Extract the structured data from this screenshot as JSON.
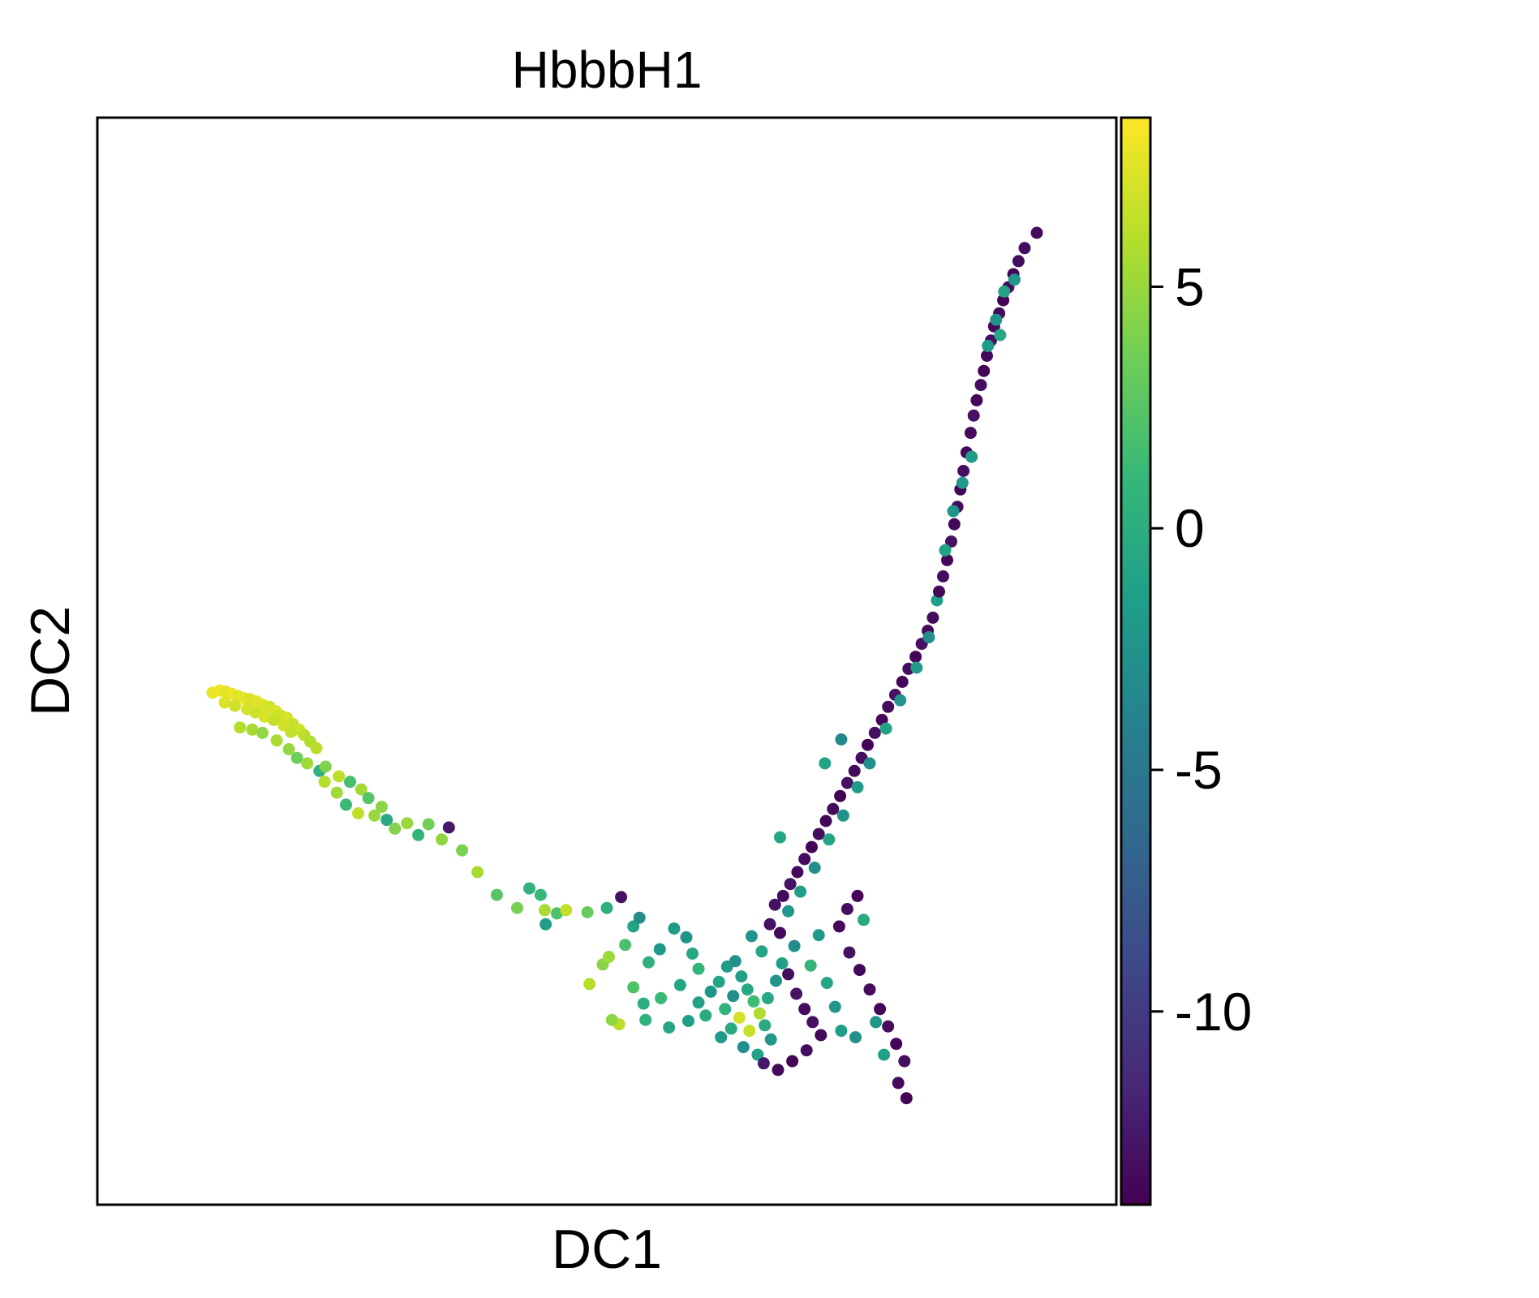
{
  "chart_data": {
    "type": "scatter",
    "title": "HbbbH1",
    "xlabel": "DC1",
    "ylabel": "DC2",
    "xticks": false,
    "yticks": false,
    "xlim": [
      0,
      100
    ],
    "ylim": [
      0,
      100
    ],
    "grid": false,
    "legend": "none",
    "colorbar": {
      "colormap": "viridis",
      "range": [
        -14,
        8.5
      ],
      "ticks": [
        5,
        0,
        -5,
        -10
      ],
      "tick_labels": [
        "5",
        "0",
        "-5",
        "-10"
      ]
    },
    "colors": {
      "viridis": [
        "#440154",
        "#482878",
        "#3e4989",
        "#31688e",
        "#26828e",
        "#1f9e89",
        "#35b779",
        "#6ece58",
        "#b5de2b",
        "#fde725"
      ]
    },
    "series": [
      {
        "note_segments": "approximate point cloud; each point [x, y, value]",
        "points": [
          [
            11.3,
            47.1,
            7.8
          ],
          [
            12.0,
            47.3,
            8.0
          ],
          [
            12.6,
            47.2,
            7.6
          ],
          [
            13.2,
            47.0,
            7.9
          ],
          [
            13.8,
            46.8,
            7.5
          ],
          [
            14.4,
            46.6,
            7.7
          ],
          [
            15.0,
            46.5,
            7.2
          ],
          [
            15.6,
            46.3,
            7.6
          ],
          [
            16.2,
            46.0,
            7.4
          ],
          [
            16.9,
            45.8,
            7.0
          ],
          [
            17.5,
            45.4,
            7.3
          ],
          [
            18.0,
            45.0,
            6.8
          ],
          [
            18.6,
            44.8,
            7.1
          ],
          [
            19.2,
            44.2,
            6.5
          ],
          [
            19.8,
            43.7,
            6.9
          ],
          [
            20.3,
            43.2,
            6.2
          ],
          [
            20.9,
            42.6,
            5.8
          ],
          [
            21.5,
            42.0,
            6.1
          ],
          [
            12.5,
            46.2,
            7.3
          ],
          [
            13.5,
            45.9,
            6.9
          ],
          [
            14.7,
            45.6,
            7.1
          ],
          [
            15.5,
            45.3,
            6.8
          ],
          [
            16.4,
            44.9,
            7.2
          ],
          [
            17.3,
            44.6,
            6.6
          ],
          [
            18.3,
            44.1,
            7.0
          ],
          [
            19.0,
            43.5,
            6.4
          ],
          [
            14.0,
            43.9,
            6.0
          ],
          [
            15.2,
            43.7,
            5.5
          ],
          [
            16.2,
            43.4,
            4.8
          ],
          [
            17.6,
            42.7,
            5.6
          ],
          [
            18.8,
            41.9,
            4.9
          ],
          [
            19.6,
            41.1,
            3.5
          ],
          [
            20.6,
            40.6,
            5.2
          ],
          [
            21.8,
            39.9,
            0.5
          ],
          [
            22.4,
            40.3,
            4.1
          ],
          [
            23.7,
            39.4,
            6.3
          ],
          [
            24.8,
            38.9,
            1.8
          ],
          [
            25.9,
            38.2,
            5.4
          ],
          [
            26.6,
            37.4,
            2.4
          ],
          [
            27.9,
            36.6,
            4.5
          ],
          [
            22.3,
            38.9,
            6.0
          ],
          [
            23.5,
            37.9,
            5.3
          ],
          [
            24.4,
            36.8,
            1.2
          ],
          [
            25.6,
            36.0,
            6.4
          ],
          [
            27.2,
            35.8,
            5.0
          ],
          [
            28.4,
            35.4,
            -0.5
          ],
          [
            29.2,
            34.6,
            4.2
          ],
          [
            30.4,
            35.1,
            5.1
          ],
          [
            31.5,
            34.0,
            0.8
          ],
          [
            32.5,
            35.0,
            3.6
          ],
          [
            33.8,
            33.6,
            4.7
          ],
          [
            35.8,
            32.6,
            3.9
          ],
          [
            34.5,
            34.7,
            -12.5
          ],
          [
            37.3,
            30.6,
            5.5
          ],
          [
            39.2,
            28.5,
            2.5
          ],
          [
            41.2,
            27.3,
            3.8
          ],
          [
            42.4,
            29.1,
            0.5
          ],
          [
            43.5,
            28.5,
            1.1
          ],
          [
            43.9,
            27.1,
            5.6
          ],
          [
            44.0,
            25.8,
            -1.5
          ],
          [
            45.1,
            26.8,
            2.0
          ],
          [
            46.0,
            27.1,
            6.5
          ],
          [
            48.1,
            26.9,
            3.2
          ],
          [
            50.0,
            27.3,
            0.2
          ],
          [
            51.4,
            28.3,
            -13.0
          ],
          [
            52.6,
            25.6,
            -1.0
          ],
          [
            53.2,
            26.4,
            -3.0
          ],
          [
            51.8,
            23.9,
            1.9
          ],
          [
            49.6,
            22.1,
            4.4
          ],
          [
            50.2,
            22.8,
            5.2
          ],
          [
            48.3,
            20.3,
            6.0
          ],
          [
            52.6,
            20.0,
            2.2
          ],
          [
            54.1,
            22.3,
            0.3
          ],
          [
            55.2,
            23.5,
            -2.0
          ],
          [
            56.6,
            25.4,
            -1.8
          ],
          [
            57.8,
            24.6,
            -2.5
          ],
          [
            58.4,
            23.1,
            -0.6
          ],
          [
            59.0,
            21.7,
            0.9
          ],
          [
            57.2,
            20.2,
            -0.8
          ],
          [
            55.3,
            19.0,
            1.2
          ],
          [
            53.6,
            18.5,
            0.0
          ],
          [
            51.2,
            16.6,
            6.3
          ],
          [
            50.5,
            17.0,
            4.6
          ],
          [
            53.8,
            17.0,
            0.4
          ],
          [
            56.1,
            16.3,
            -0.7
          ],
          [
            58.0,
            16.9,
            -1.4
          ],
          [
            59.7,
            17.4,
            -0.2
          ],
          [
            61.2,
            15.4,
            -1.9
          ],
          [
            59.0,
            18.6,
            -1.0
          ],
          [
            60.2,
            19.6,
            -2.2
          ],
          [
            61.0,
            20.5,
            -0.9
          ],
          [
            61.8,
            21.9,
            -1.6
          ],
          [
            62.6,
            22.4,
            -2.6
          ],
          [
            63.2,
            21.0,
            -1.2
          ],
          [
            63.8,
            19.8,
            -0.4
          ],
          [
            64.4,
            18.7,
            1.4
          ],
          [
            65.0,
            17.6,
            5.8
          ],
          [
            65.5,
            16.5,
            -0.3
          ],
          [
            66.1,
            15.2,
            -2.1
          ],
          [
            64.8,
            13.8,
            -1.1
          ],
          [
            63.4,
            14.5,
            -2.8
          ],
          [
            62.2,
            16.2,
            -0.1
          ],
          [
            61.6,
            18.0,
            0.6
          ],
          [
            62.4,
            19.2,
            -2.9
          ],
          [
            63.0,
            17.2,
            7.1
          ],
          [
            64.0,
            16.0,
            6.6
          ],
          [
            65.8,
            19.0,
            -0.6
          ],
          [
            66.6,
            20.6,
            -2.3
          ],
          [
            67.2,
            22.2,
            -1.3
          ],
          [
            68.4,
            23.8,
            -3.1
          ],
          [
            65.2,
            23.3,
            -0.8
          ],
          [
            64.2,
            24.7,
            -2.4
          ],
          [
            66.0,
            25.8,
            -13.0
          ],
          [
            67.0,
            25.0,
            -13.5
          ],
          [
            67.8,
            21.2,
            -13.2
          ],
          [
            68.6,
            19.4,
            -12.8
          ],
          [
            69.4,
            18.0,
            -13.4
          ],
          [
            70.2,
            16.8,
            -13.0
          ],
          [
            71.0,
            15.6,
            -13.6
          ],
          [
            69.6,
            14.2,
            -13.2
          ],
          [
            68.2,
            13.2,
            -13.8
          ],
          [
            66.8,
            12.4,
            -13.5
          ],
          [
            65.4,
            13.0,
            -12.5
          ],
          [
            66.5,
            27.6,
            -13.0
          ],
          [
            67.3,
            28.4,
            -13.4
          ],
          [
            68.0,
            29.5,
            -12.9
          ],
          [
            68.7,
            30.6,
            -13.6
          ],
          [
            69.4,
            31.8,
            -13.2
          ],
          [
            70.1,
            32.9,
            -13.8
          ],
          [
            70.8,
            34.1,
            -13.1
          ],
          [
            71.5,
            35.3,
            -13.7
          ],
          [
            72.2,
            36.4,
            -13.3
          ],
          [
            72.9,
            37.6,
            -13.9
          ],
          [
            73.6,
            38.8,
            -13.0
          ],
          [
            74.3,
            39.9,
            -13.5
          ],
          [
            75.0,
            41.1,
            -13.2
          ],
          [
            75.6,
            42.3,
            -13.8
          ],
          [
            76.3,
            43.4,
            -13.1
          ],
          [
            77.0,
            44.6,
            -13.6
          ],
          [
            77.6,
            45.8,
            -13.4
          ],
          [
            78.3,
            46.9,
            -13.0
          ],
          [
            79.0,
            48.1,
            -13.7
          ],
          [
            79.6,
            49.3,
            -13.2
          ],
          [
            80.3,
            50.4,
            -13.8
          ],
          [
            80.9,
            51.6,
            -13.0
          ],
          [
            81.5,
            52.8,
            -13.5
          ],
          [
            82.0,
            54.0,
            -13.3
          ],
          [
            67.8,
            27.0,
            -2.2
          ],
          [
            69.0,
            28.8,
            -1.4
          ],
          [
            70.4,
            31.0,
            -2.8
          ],
          [
            71.8,
            33.6,
            -0.9
          ],
          [
            73.2,
            35.8,
            -2.6
          ],
          [
            74.6,
            38.4,
            -1.7
          ],
          [
            75.8,
            40.6,
            -2.9
          ],
          [
            77.4,
            43.8,
            -1.2
          ],
          [
            78.8,
            46.4,
            -2.4
          ],
          [
            80.4,
            49.4,
            -1.8
          ],
          [
            81.6,
            52.2,
            -3.0
          ],
          [
            82.4,
            55.6,
            -1.5
          ],
          [
            73.0,
            42.8,
            -3.4
          ],
          [
            67.0,
            33.8,
            -0.8
          ],
          [
            71.4,
            40.6,
            -1.0
          ],
          [
            82.6,
            56.4,
            -13.5
          ],
          [
            83.0,
            57.8,
            -13.2
          ],
          [
            83.4,
            59.3,
            -13.7
          ],
          [
            83.8,
            61.0,
            -13.0
          ],
          [
            84.1,
            62.6,
            -13.6
          ],
          [
            84.4,
            64.2,
            -13.3
          ],
          [
            84.7,
            65.8,
            -13.8
          ],
          [
            85.0,
            67.5,
            -13.1
          ],
          [
            85.3,
            69.2,
            -13.5
          ],
          [
            85.7,
            71.0,
            -13.4
          ],
          [
            86.0,
            72.6,
            -13.0
          ],
          [
            86.3,
            74.0,
            -13.7
          ],
          [
            84.9,
            66.4,
            -2.0
          ],
          [
            85.8,
            68.8,
            -1.6
          ],
          [
            83.2,
            60.2,
            -1.1
          ],
          [
            84.0,
            63.8,
            -2.5
          ],
          [
            86.7,
            75.4,
            -13.2
          ],
          [
            87.0,
            76.7,
            -13.8
          ],
          [
            87.3,
            78.1,
            -13.5
          ],
          [
            87.7,
            79.5,
            -13.0
          ],
          [
            88.0,
            80.8,
            -13.6
          ],
          [
            88.5,
            82.0,
            -13.3
          ],
          [
            88.9,
            83.2,
            -13.9
          ],
          [
            89.4,
            84.4,
            -13.1
          ],
          [
            89.9,
            85.6,
            -13.7
          ],
          [
            90.4,
            86.8,
            -13.2
          ],
          [
            87.4,
            79.0,
            -1.8
          ],
          [
            88.2,
            81.4,
            -2.6
          ],
          [
            89.0,
            84.0,
            -1.2
          ],
          [
            90.0,
            85.1,
            -2.1
          ],
          [
            88.6,
            80.0,
            -0.6
          ],
          [
            92.2,
            89.4,
            -13.5
          ],
          [
            91.0,
            88.0,
            -13.2
          ],
          [
            72.8,
            25.6,
            -13.6
          ],
          [
            73.6,
            27.2,
            -13.1
          ],
          [
            74.6,
            28.4,
            -13.8
          ],
          [
            73.8,
            23.2,
            -12.9
          ],
          [
            74.8,
            21.6,
            -13.5
          ],
          [
            75.8,
            19.8,
            -13.2
          ],
          [
            76.8,
            18.0,
            -13.7
          ],
          [
            77.6,
            16.4,
            -13.3
          ],
          [
            78.4,
            14.8,
            -13.8
          ],
          [
            79.2,
            13.2,
            -13.1
          ],
          [
            76.4,
            16.8,
            -2.1
          ],
          [
            77.2,
            13.8,
            -1.3
          ],
          [
            78.6,
            11.2,
            -13.4
          ],
          [
            79.4,
            9.8,
            -13.7
          ],
          [
            74.4,
            15.4,
            -2.7
          ],
          [
            70.8,
            24.8,
            -1.9
          ],
          [
            71.6,
            20.4,
            -0.7
          ],
          [
            72.4,
            18.2,
            -2.4
          ],
          [
            70.0,
            22.0,
            0.8
          ],
          [
            73.0,
            16.0,
            -1.5
          ],
          [
            75.2,
            26.2,
            -0.4
          ]
        ]
      }
    ]
  }
}
